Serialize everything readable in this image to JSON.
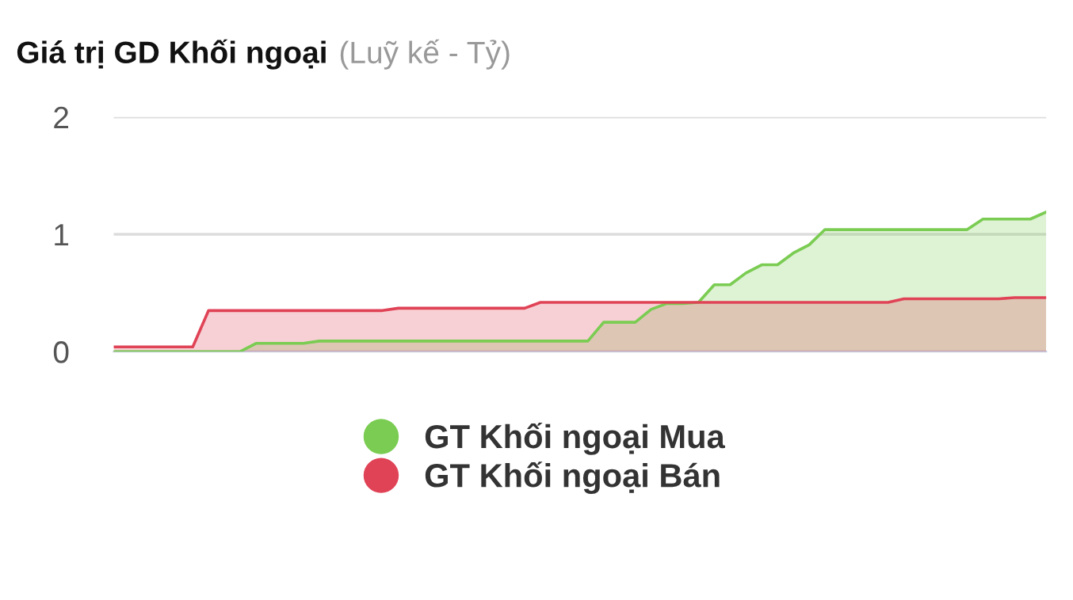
{
  "chart_data": {
    "type": "area",
    "title": "Giá trị GD Khối ngoại",
    "subtitle": "(Luỹ kế - Tỷ)",
    "categories": [
      null,
      null,
      null,
      null,
      null,
      null,
      null,
      null,
      null,
      null,
      null,
      null,
      null,
      null,
      null,
      null,
      null,
      null,
      null,
      null,
      null,
      null,
      null,
      null,
      null,
      null,
      null,
      null,
      null,
      null,
      null,
      null,
      null,
      null,
      null,
      null,
      null,
      null,
      null,
      null,
      null,
      null,
      null,
      null,
      null,
      null,
      null,
      null,
      null,
      null,
      null,
      null,
      null,
      null,
      null,
      null,
      null,
      null,
      null,
      null
    ],
    "series": [
      {
        "name": "GT Khối ngoại Mua",
        "color": "#7acc52",
        "values": [
          0,
          0,
          0,
          0,
          0,
          0,
          0,
          0,
          0,
          0.07,
          0.07,
          0.07,
          0.07,
          0.09,
          0.09,
          0.09,
          0.09,
          0.09,
          0.09,
          0.09,
          0.09,
          0.09,
          0.09,
          0.09,
          0.09,
          0.09,
          0.09,
          0.09,
          0.09,
          0.09,
          0.09,
          0.25,
          0.25,
          0.25,
          0.36,
          0.41,
          0.41,
          0.42,
          0.57,
          0.57,
          0.67,
          0.74,
          0.74,
          0.84,
          0.91,
          1.04,
          1.04,
          1.04,
          1.04,
          1.04,
          1.04,
          1.04,
          1.04,
          1.04,
          1.04,
          1.13,
          1.13,
          1.13,
          1.13,
          1.19
        ]
      },
      {
        "name": "GT Khối ngoại Bán",
        "color": "#e04356",
        "values": [
          0.04,
          0.04,
          0.04,
          0.04,
          0.04,
          0.04,
          0.35,
          0.35,
          0.35,
          0.35,
          0.35,
          0.35,
          0.35,
          0.35,
          0.35,
          0.35,
          0.35,
          0.35,
          0.37,
          0.37,
          0.37,
          0.37,
          0.37,
          0.37,
          0.37,
          0.37,
          0.37,
          0.42,
          0.42,
          0.42,
          0.42,
          0.42,
          0.42,
          0.42,
          0.42,
          0.42,
          0.42,
          0.42,
          0.42,
          0.42,
          0.42,
          0.42,
          0.42,
          0.42,
          0.42,
          0.42,
          0.42,
          0.42,
          0.42,
          0.42,
          0.45,
          0.45,
          0.45,
          0.45,
          0.45,
          0.45,
          0.45,
          0.46,
          0.46,
          0.46
        ]
      }
    ],
    "ylim": [
      0,
      2
    ],
    "yticks": [
      0,
      1,
      2
    ],
    "grid": "y",
    "legend": "bottom",
    "tick_labels": "y",
    "marker": "none",
    "line_style": "solid"
  }
}
